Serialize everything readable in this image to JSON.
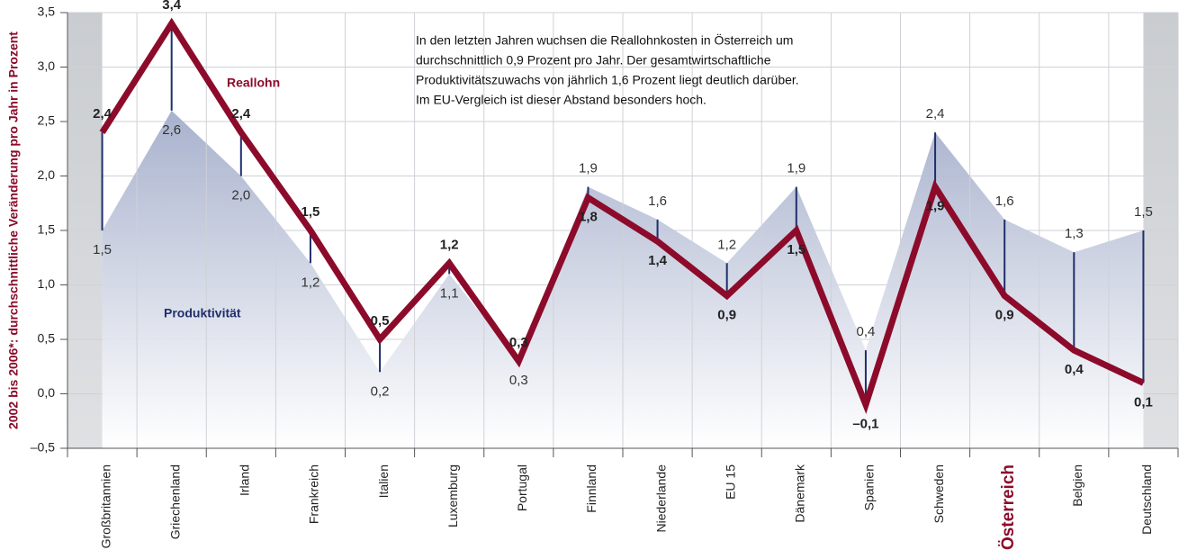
{
  "chart_data": {
    "type": "line",
    "y_label": "2002 bis 2006*: durchschnittliche Veränderung pro Jahr in Prozent",
    "annotation": [
      "In den letzten Jahren wuchsen die Reallohnkosten in Österreich um",
      "durchschnittlich 0,9 Prozent pro Jahr. Der gesamtwirtschaftliche",
      "Produktivitätszuwachs von jährlich 1,6 Prozent liegt deutlich darüber.",
      "Im EU-Vergleich ist dieser Abstand besonders hoch."
    ],
    "categories": [
      "Großbritannien",
      "Griechenland",
      "Irland",
      "Frankreich",
      "Italien",
      "Luxemburg",
      "Portugal",
      "Finnland",
      "Niederlande",
      "EU 15",
      "Dänemark",
      "Spanien",
      "Schweden",
      "Österreich",
      "Belgien",
      "Deutschland"
    ],
    "series": [
      {
        "name": "Reallohn",
        "color": "#8c0b2b",
        "values": [
          2.4,
          3.4,
          2.4,
          1.5,
          0.5,
          1.2,
          0.3,
          1.8,
          1.4,
          0.9,
          1.5,
          -0.1,
          1.9,
          0.9,
          0.4,
          0.1
        ],
        "value_labels": [
          "2,4",
          "3,4",
          "2,4",
          "1,5",
          "0,5",
          "1,2",
          "0,3",
          "1,8",
          "1,4",
          "0,9",
          "1,5",
          "–0,1",
          "1,9",
          "0,9",
          "0,4",
          "0,1"
        ]
      },
      {
        "name": "Produktivität",
        "color": "#1f2f6b",
        "values": [
          1.5,
          2.6,
          2.0,
          1.2,
          0.2,
          1.1,
          0.3,
          1.9,
          1.6,
          1.2,
          1.9,
          0.4,
          2.4,
          1.6,
          1.3,
          1.5
        ],
        "value_labels": [
          "1,5",
          "2,6",
          "2,0",
          "1,2",
          "0,2",
          "1,1",
          "0,3",
          "1,9",
          "1,6",
          "1,2",
          "1,9",
          "0,4",
          "2,4",
          "1,6",
          "1,3",
          "1,5"
        ]
      }
    ],
    "ylim": [
      -0.5,
      3.5
    ],
    "yticks": [
      {
        "value": -0.5,
        "label": "–0,5"
      },
      {
        "value": 0,
        "label": "0,0"
      },
      {
        "value": 0.5,
        "label": "0,5"
      },
      {
        "value": 1,
        "label": "1,0"
      },
      {
        "value": 1.5,
        "label": "1,5"
      },
      {
        "value": 2,
        "label": "2,0"
      },
      {
        "value": 2.5,
        "label": "2,5"
      },
      {
        "value": 3,
        "label": "3,0"
      },
      {
        "value": 3.5,
        "label": "3,5"
      }
    ],
    "grid": true
  }
}
